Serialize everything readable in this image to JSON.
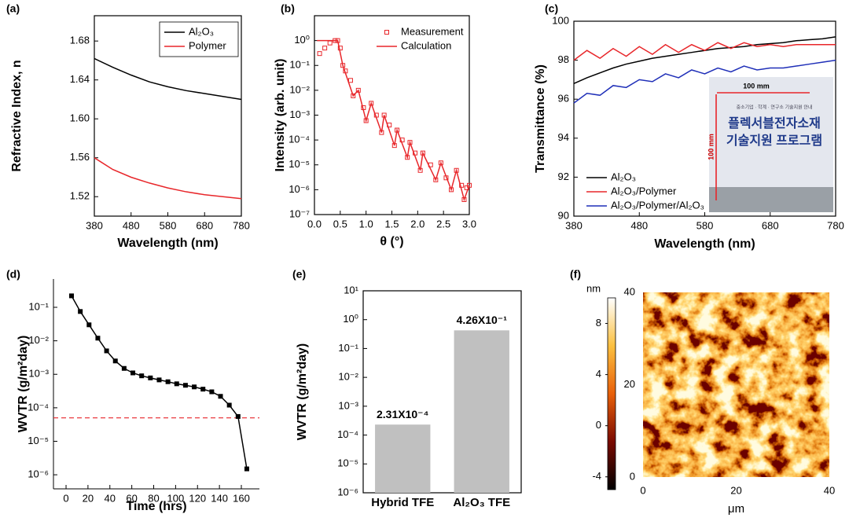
{
  "chart_data": [
    {
      "panel": "(a)",
      "type": "line",
      "xlabel": "Wavelength (nm)",
      "ylabel": "Refractive Index, n",
      "x": [
        380,
        430,
        480,
        530,
        580,
        630,
        680,
        730,
        780
      ],
      "series": [
        {
          "name": "Al₂O₃",
          "color": "#000000",
          "values": [
            1.662,
            1.653,
            1.645,
            1.638,
            1.633,
            1.629,
            1.626,
            1.623,
            1.62
          ]
        },
        {
          "name": "Polymer",
          "color": "#e8262a",
          "values": [
            1.56,
            1.548,
            1.54,
            1.534,
            1.529,
            1.525,
            1.522,
            1.52,
            1.518
          ]
        }
      ],
      "xlim": [
        380,
        780
      ],
      "ylim": [
        1.5,
        1.706
      ],
      "xticks": [
        380,
        480,
        580,
        680,
        780
      ],
      "yticks": [
        1.52,
        1.56,
        {
          "value": 1.6,
          "label": "1.60"
        },
        1.64,
        1.68
      ],
      "legend": "upper right",
      "legend_box": true
    },
    {
      "panel": "(b)",
      "type": "line",
      "xlabel": "θ (°)",
      "ylabel": "Intensity (arb. unit)",
      "yscale": "log",
      "series": [
        {
          "name": "Measurement",
          "color": "#e8262a",
          "marker": "square-open",
          "line": false,
          "x": [
            0.1,
            0.2,
            0.3,
            0.4,
            0.45,
            0.5,
            0.55,
            0.6,
            0.7,
            0.75,
            0.85,
            0.95,
            1.0,
            1.1,
            1.2,
            1.3,
            1.35,
            1.45,
            1.55,
            1.6,
            1.7,
            1.8,
            1.85,
            1.95,
            2.05,
            2.1,
            2.25,
            2.35,
            2.45,
            2.55,
            2.65,
            2.75,
            2.85,
            2.9,
            2.95,
            3.0
          ],
          "values": [
            0.3,
            0.5,
            0.8,
            1,
            1,
            0.5,
            0.1,
            0.06,
            0.025,
            0.006,
            0.01,
            0.002,
            0.0006,
            0.003,
            0.001,
            0.0002,
            0.001,
            0.0004,
            6e-05,
            0.00025,
            0.0001,
            2e-05,
            8e-05,
            3e-05,
            6e-06,
            3e-05,
            1e-05,
            2.5e-06,
            1.2e-05,
            3e-06,
            1e-06,
            6e-06,
            1.5e-06,
            4e-07,
            1.2e-06,
            1.5e-06
          ]
        },
        {
          "name": "Calculation",
          "color": "#e8262a",
          "x": [
            0.05,
            0.45,
            0.55,
            0.75,
            0.85,
            1.0,
            1.1,
            1.3,
            1.35,
            1.55,
            1.6,
            1.8,
            1.85,
            2.05,
            2.1,
            2.35,
            2.45,
            2.65,
            2.75,
            2.9,
            3.0
          ],
          "values": [
            1,
            1,
            0.1,
            0.006,
            0.01,
            0.0006,
            0.003,
            0.0002,
            0.001,
            6e-05,
            0.00025,
            2e-05,
            8e-05,
            6e-06,
            3e-05,
            2.5e-06,
            1.2e-05,
            1e-06,
            6e-06,
            4e-07,
            1.5e-06
          ]
        }
      ],
      "xlim": [
        0,
        3
      ],
      "ylim": [
        1e-07,
        10
      ],
      "xticks": [
        {
          "value": 0,
          "label": "0.0"
        },
        0.5,
        {
          "value": 1,
          "label": "1.0"
        },
        1.5,
        {
          "value": 2,
          "label": "2.0"
        },
        2.5,
        {
          "value": 3,
          "label": "3.0"
        }
      ],
      "yticks": [
        {
          "value": 1e-07,
          "label": "10⁻⁷"
        },
        {
          "value": 1e-06,
          "label": "10⁻⁶"
        },
        {
          "value": 1e-05,
          "label": "10⁻⁵"
        },
        {
          "value": 0.0001,
          "label": "10⁻⁴"
        },
        {
          "value": 0.001,
          "label": "10⁻³"
        },
        {
          "value": 0.01,
          "label": "10⁻²"
        },
        {
          "value": 0.1,
          "label": "10⁻¹"
        },
        {
          "value": 1,
          "label": "10⁰"
        }
      ],
      "legend": "upper right"
    },
    {
      "panel": "(c)",
      "type": "line",
      "xlabel": "Wavelength (nm)",
      "ylabel": "Transmittance (%)",
      "x": [
        380,
        400,
        420,
        440,
        460,
        480,
        500,
        520,
        540,
        560,
        580,
        600,
        620,
        640,
        660,
        680,
        700,
        720,
        740,
        760,
        780
      ],
      "series": [
        {
          "name": "Al₂O₃",
          "color": "#000000",
          "values": [
            96.8,
            97.1,
            97.35,
            97.6,
            97.8,
            97.95,
            98.1,
            98.2,
            98.3,
            98.4,
            98.5,
            98.6,
            98.65,
            98.7,
            98.8,
            98.85,
            98.9,
            99.0,
            99.05,
            99.1,
            99.2
          ]
        },
        {
          "name": "Al₂O₃/Polymer",
          "color": "#e8262a",
          "values": [
            98.0,
            98.5,
            98.1,
            98.6,
            98.2,
            98.7,
            98.3,
            98.8,
            98.4,
            98.8,
            98.5,
            98.9,
            98.6,
            98.9,
            98.7,
            98.8,
            98.7,
            98.8,
            98.8,
            98.8,
            98.8
          ]
        },
        {
          "name": "Al₂O₃/Polymer/Al₂O₃",
          "color": "#1f2fb8",
          "values": [
            95.8,
            96.3,
            96.2,
            96.7,
            96.6,
            97.0,
            96.9,
            97.3,
            97.1,
            97.5,
            97.3,
            97.6,
            97.4,
            97.7,
            97.5,
            97.6,
            97.6,
            97.7,
            97.8,
            97.9,
            98.0
          ]
        }
      ],
      "xlim": [
        380,
        780
      ],
      "ylim": [
        90,
        100
      ],
      "xticks": [
        380,
        480,
        580,
        680,
        780
      ],
      "yticks": [
        90,
        92,
        94,
        96,
        98,
        100
      ],
      "legend": "lower left",
      "inset": {
        "top_text": "중소기업 · 학계 · 연구소 기술지원 안내",
        "title_1": "플렉서블전자소재",
        "title_2": "기술지원 프로그램",
        "width_label": "100 mm",
        "height_label": "100 mm"
      }
    },
    {
      "panel": "(d)",
      "type": "line",
      "xlabel": "Time (hrs)",
      "ylabel": "WVTR (g/m²day)",
      "yscale": "log",
      "frame": false,
      "series": [
        {
          "name": "WVTR",
          "color": "#000000",
          "marker": "square",
          "x": [
            5,
            13,
            21,
            29,
            37,
            45,
            53,
            61,
            69,
            77,
            85,
            93,
            101,
            109,
            117,
            125,
            133,
            141,
            149,
            157,
            165
          ],
          "values": [
            0.22,
            0.075,
            0.03,
            0.012,
            0.005,
            0.0025,
            0.0015,
            0.0011,
            0.0009,
            0.00078,
            0.00068,
            0.0006,
            0.00052,
            0.00047,
            0.00042,
            0.00036,
            0.0003,
            0.00022,
            0.00012,
            5.5e-05,
            1.5e-06
          ]
        }
      ],
      "hline": {
        "value": 5e-05,
        "color": "#e8262a"
      },
      "xlim": [
        -11.5,
        176.5
      ],
      "ylim": [
        3.8e-07,
        0.7
      ],
      "xticks": [
        0,
        20,
        40,
        60,
        80,
        100,
        120,
        140,
        160
      ],
      "yticks": [
        {
          "value": 1e-06,
          "label": "10⁻⁶"
        },
        {
          "value": 1e-05,
          "label": "10⁻⁵"
        },
        {
          "value": 0.0001,
          "label": "10⁻⁴"
        },
        {
          "value": 0.001,
          "label": "10⁻³"
        },
        {
          "value": 0.01,
          "label": "10⁻²"
        },
        {
          "value": 0.1,
          "label": "10⁻¹"
        }
      ]
    },
    {
      "panel": "(e)",
      "type": "bar",
      "ylabel": "WVTR (g/m²day)",
      "yscale": "log",
      "categories": [
        "Hybrid TFE",
        "Al₂O₃ TFE"
      ],
      "values": [
        0.000231,
        0.426
      ],
      "value_labels": [
        "2.31X10⁻⁴",
        "4.26X10⁻¹"
      ],
      "color": "#c0c0c0",
      "ylim": [
        1e-06,
        10
      ],
      "yticks": [
        {
          "value": 1e-06,
          "label": "10⁻⁶"
        },
        {
          "value": 1e-05,
          "label": "10⁻⁵"
        },
        {
          "value": 0.0001,
          "label": "10⁻⁴"
        },
        {
          "value": 0.001,
          "label": "10⁻³"
        },
        {
          "value": 0.01,
          "label": "10⁻²"
        },
        {
          "value": 0.1,
          "label": "10⁻¹"
        },
        {
          "value": 1,
          "label": "10⁰"
        },
        {
          "value": 10,
          "label": "10¹"
        }
      ]
    },
    {
      "panel": "(f)",
      "type": "image",
      "xlabel": "μm",
      "xlim": [
        0,
        40
      ],
      "ylim": [
        0,
        40
      ],
      "xticks": [
        0,
        20,
        40
      ],
      "yticks": [
        0,
        20,
        40
      ],
      "colorbar": {
        "label": "nm",
        "lim": [
          -5,
          10
        ],
        "ticks": [
          -4,
          0,
          4,
          8
        ]
      }
    }
  ]
}
